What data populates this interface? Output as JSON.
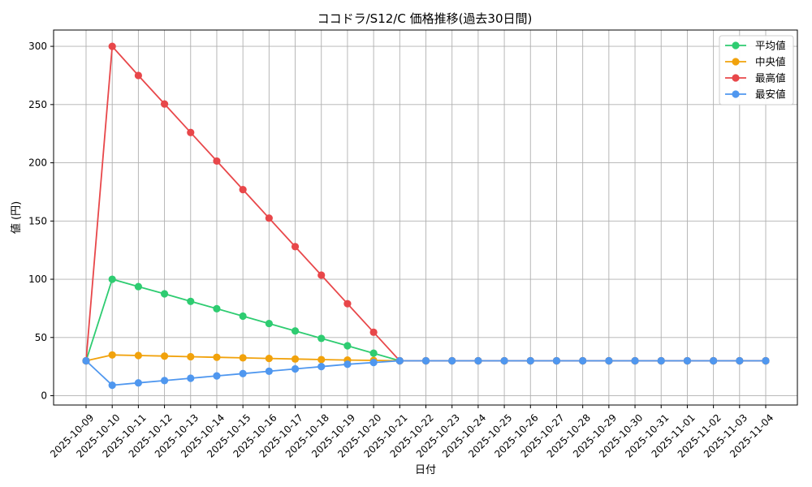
{
  "chart_data": {
    "type": "line",
    "title": "ココドラ/S12/C 価格推移(過去30日間)",
    "xlabel": "日付",
    "ylabel": "値 (円)",
    "ylim": [
      -8,
      314
    ],
    "yticks": [
      0,
      50,
      100,
      150,
      200,
      250,
      300
    ],
    "grid": true,
    "legend_position": "top-right",
    "categories": [
      "2025-10-09",
      "2025-10-10",
      "2025-10-11",
      "2025-10-12",
      "2025-10-13",
      "2025-10-14",
      "2025-10-15",
      "2025-10-16",
      "2025-10-17",
      "2025-10-18",
      "2025-10-19",
      "2025-10-20",
      "2025-10-21",
      "2025-10-22",
      "2025-10-23",
      "2025-10-24",
      "2025-10-25",
      "2025-10-26",
      "2025-10-27",
      "2025-10-28",
      "2025-10-29",
      "2025-10-30",
      "2025-10-31",
      "2025-11-01",
      "2025-11-02",
      "2025-11-03",
      "2025-11-04"
    ],
    "series": [
      {
        "name": "平均値",
        "color": "#2ecc71",
        "values": [
          30,
          100,
          93.7,
          87.5,
          81,
          74.7,
          68.3,
          62,
          55.6,
          49.2,
          42.9,
          36.5,
          30,
          30,
          30,
          30,
          30,
          30,
          30,
          30,
          30,
          30,
          30,
          30,
          30,
          30,
          30
        ]
      },
      {
        "name": "中央値",
        "color": "#f1a20c",
        "values": [
          30,
          35,
          34.5,
          34,
          33.5,
          33,
          32.5,
          32,
          31.5,
          31,
          30.6,
          30.3,
          30,
          30,
          30,
          30,
          30,
          30,
          30,
          30,
          30,
          30,
          30,
          30,
          30,
          30,
          30
        ]
      },
      {
        "name": "最高値",
        "color": "#e8474a",
        "values": [
          30,
          300,
          275,
          250.5,
          226,
          201.5,
          177,
          152.5,
          128,
          103.5,
          79,
          54.5,
          30,
          30,
          30,
          30,
          30,
          30,
          30,
          30,
          30,
          30,
          30,
          30,
          30,
          30,
          30
        ]
      },
      {
        "name": "最安値",
        "color": "#4f97ef",
        "values": [
          30,
          9,
          11,
          13,
          15,
          17,
          19,
          21,
          23,
          25,
          27,
          28.5,
          30,
          30,
          30,
          30,
          30,
          30,
          30,
          30,
          30,
          30,
          30,
          30,
          30,
          30,
          30
        ]
      }
    ]
  }
}
